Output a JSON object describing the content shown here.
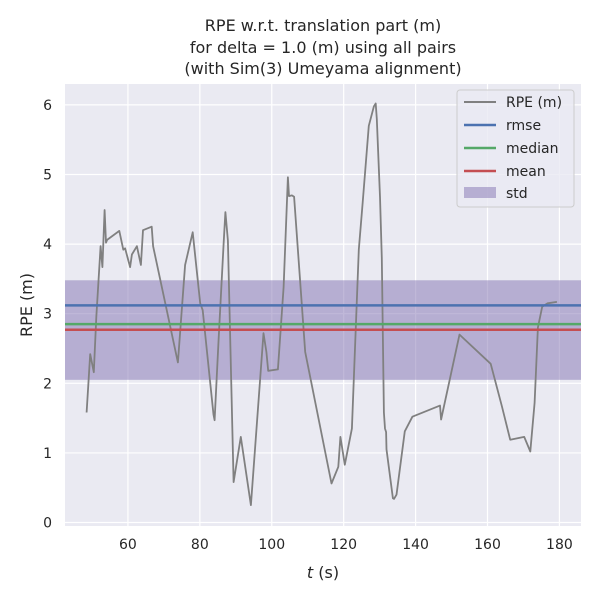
{
  "chart_data": {
    "type": "line",
    "title": [
      "RPE w.r.t. translation part (m)",
      "for delta = 1.0 (m) using all pairs",
      "(with Sim(3) Umeyama alignment)"
    ],
    "xlabel_italic": "t",
    "xlabel_rest": " (s)",
    "ylabel": "RPE (m)",
    "xlim": [
      42.5,
      186
    ],
    "ylim": [
      -0.05,
      6.3
    ],
    "xticks": [
      60,
      80,
      100,
      120,
      140,
      160,
      180
    ],
    "yticks": [
      0,
      1,
      2,
      3,
      4,
      5,
      6
    ],
    "grid": true,
    "legend_position": "top-right",
    "series": [
      {
        "name": "RPE (m)",
        "color": "#808080",
        "x": [
          48.5,
          49.5,
          50.5,
          51.2,
          52.4,
          52.9,
          53.5,
          53.9,
          54.2,
          57.6,
          58.7,
          59.2,
          60.6,
          61.1,
          62.5,
          63.6,
          64.2,
          66.6,
          67.0,
          73.9,
          75.9,
          78.0,
          80.1,
          80.8,
          83.8,
          84.1,
          85.2,
          86.6,
          87.1,
          87.8,
          89.4,
          91.4,
          94.2,
          97.7,
          98.5,
          99.0,
          101.7,
          103.3,
          104.5,
          104.8,
          105.6,
          106.2,
          109.3,
          116.6,
          118.5,
          119.1,
          120.3,
          122.3,
          124.2,
          125.3,
          127.0,
          128.4,
          128.9,
          129.2,
          130.1,
          130.6,
          131.2,
          131.5,
          131.8,
          131.9,
          133.7,
          134.0,
          134.7,
          137.0,
          139.1,
          146.8,
          147.1,
          152.2,
          160.9,
          164.0,
          166.3,
          170.2,
          171.9,
          173.1,
          174.0,
          175.2,
          176.7,
          179.3
        ],
        "y": [
          1.58,
          2.42,
          2.16,
          2.95,
          3.97,
          3.67,
          4.49,
          4.02,
          4.06,
          4.19,
          3.92,
          3.94,
          3.67,
          3.85,
          3.97,
          3.7,
          4.2,
          4.25,
          3.97,
          2.3,
          3.7,
          4.17,
          3.15,
          3.05,
          1.55,
          1.47,
          2.6,
          4.0,
          4.46,
          4.05,
          0.58,
          1.23,
          0.25,
          2.72,
          2.45,
          2.18,
          2.2,
          3.38,
          4.96,
          4.69,
          4.7,
          4.68,
          2.45,
          0.56,
          0.8,
          1.23,
          0.83,
          1.35,
          3.92,
          4.6,
          5.7,
          5.98,
          6.02,
          5.8,
          4.68,
          3.8,
          1.58,
          1.35,
          1.3,
          1.05,
          0.35,
          0.34,
          0.4,
          1.31,
          1.52,
          1.68,
          1.48,
          2.7,
          2.28,
          1.67,
          1.19,
          1.23,
          1.02,
          1.72,
          2.8,
          3.1,
          3.15,
          3.17
        ]
      }
    ],
    "rmse": {
      "name": "rmse",
      "value": 3.12,
      "color": "#4c72b0"
    },
    "median": {
      "name": "median",
      "value": 2.85,
      "color": "#55a868"
    },
    "mean": {
      "name": "mean",
      "value": 2.77,
      "color": "#c44e52"
    },
    "std": {
      "name": "std",
      "lower": 2.05,
      "upper": 3.48,
      "color": "#8172b2"
    }
  }
}
